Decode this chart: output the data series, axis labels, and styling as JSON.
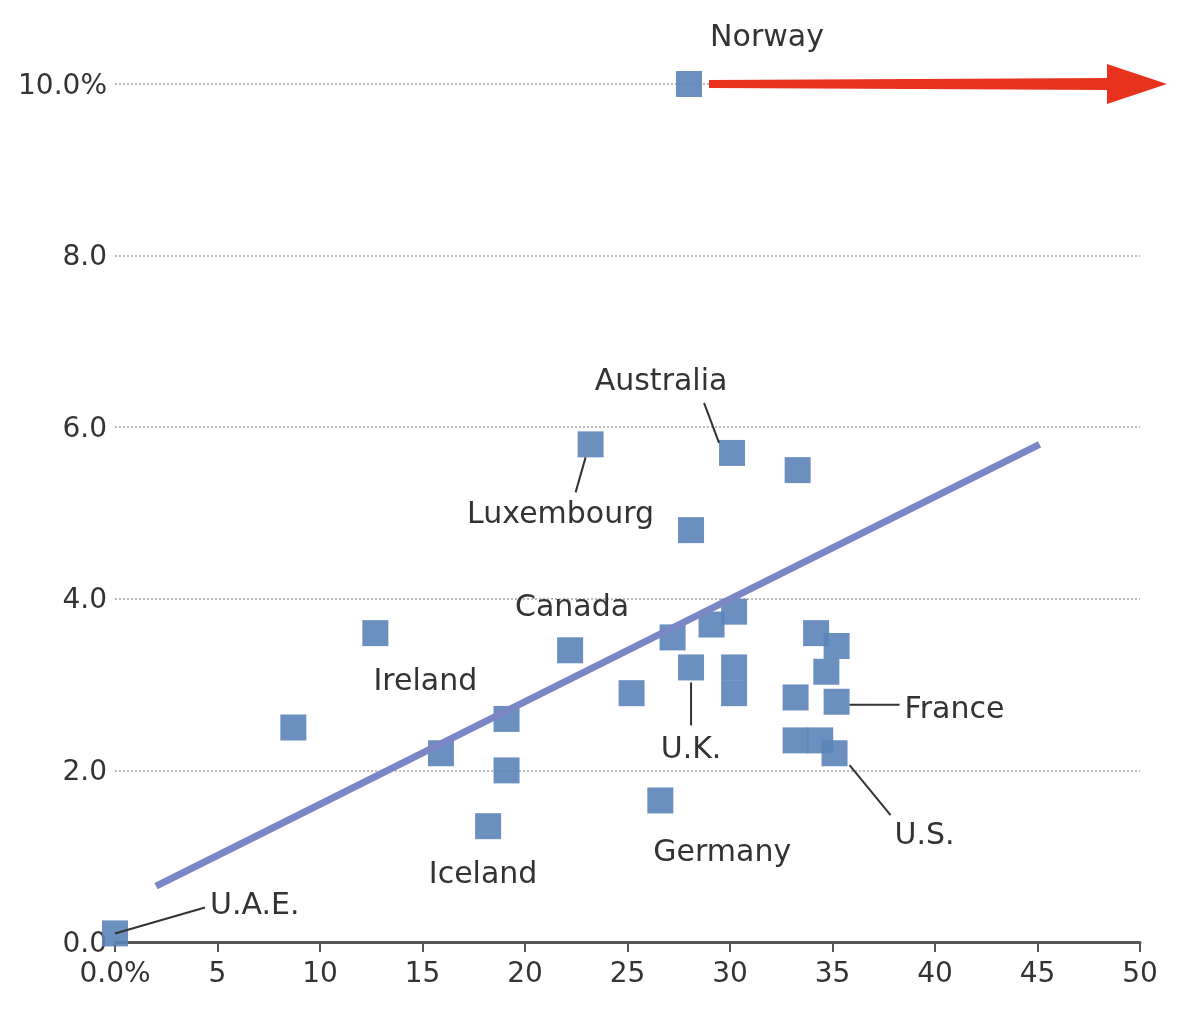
{
  "chart_data": {
    "type": "scatter",
    "grid": "y",
    "xlim": [
      0,
      50
    ],
    "xticks": [
      {
        "value": 0,
        "label": "0.0%"
      },
      5,
      10,
      15,
      20,
      25,
      30,
      35,
      40,
      45,
      50
    ],
    "ylim": [
      0,
      10
    ],
    "yticks": [
      {
        "value": 0,
        "label": "0.0"
      },
      {
        "value": 2,
        "label": "2.0"
      },
      {
        "value": 4,
        "label": "4.0"
      },
      {
        "value": 6,
        "label": "6.0"
      },
      {
        "value": 8,
        "label": "8.0"
      },
      {
        "value": 10,
        "label": "10.0%"
      }
    ],
    "series": [
      {
        "color": "#5b84b8",
        "marker": "square",
        "x": [
          0,
          8.7,
          12.7,
          15.9,
          19.1,
          19.1,
          18.2,
          22.2,
          23.2,
          25.2,
          26.6,
          27.2,
          28.1,
          28.1,
          29.1,
          30.2,
          30.2,
          30.2,
          30.1,
          33.3,
          33.2,
          33.2,
          34.2,
          35.2,
          34.7,
          35.2,
          34.4,
          35.1,
          28
        ],
        "values": [
          0.1,
          2.5,
          3.6,
          2.2,
          2.6,
          2.0,
          1.35,
          3.4,
          5.8,
          2.9,
          1.65,
          3.55,
          3.2,
          4.8,
          3.7,
          3.85,
          3.2,
          2.9,
          5.7,
          5.5,
          2.85,
          2.35,
          3.6,
          3.45,
          3.15,
          2.8,
          2.35,
          2.2,
          10
        ]
      },
      {
        "type": "line",
        "marker": "none",
        "color": "#7b86c4",
        "x": [
          2,
          45.1
        ],
        "values": [
          0.65,
          5.8
        ]
      }
    ],
    "annotations": [
      {
        "text": "U.A.E.",
        "x": 0,
        "y": 0.1
      },
      {
        "text": "Norway",
        "x": 28,
        "y": 10
      },
      {
        "text": "Australia",
        "x": 30.1,
        "y": 5.7
      },
      {
        "text": "Luxembourg",
        "x": 23.2,
        "y": 5.8
      },
      {
        "text": "Canada",
        "x": 22.2,
        "y": 3.4
      },
      {
        "text": "Ireland",
        "x": 12.7,
        "y": 3.6
      },
      {
        "text": "Iceland",
        "x": 18.2,
        "y": 1.35
      },
      {
        "text": "Germany",
        "x": 26.6,
        "y": 1.65
      },
      {
        "text": "U.K.",
        "x": 28.1,
        "y": 3.2
      },
      {
        "text": "France",
        "x": 35.2,
        "y": 2.8
      },
      {
        "text": "U.S.",
        "x": 35.1,
        "y": 2.2
      }
    ]
  }
}
